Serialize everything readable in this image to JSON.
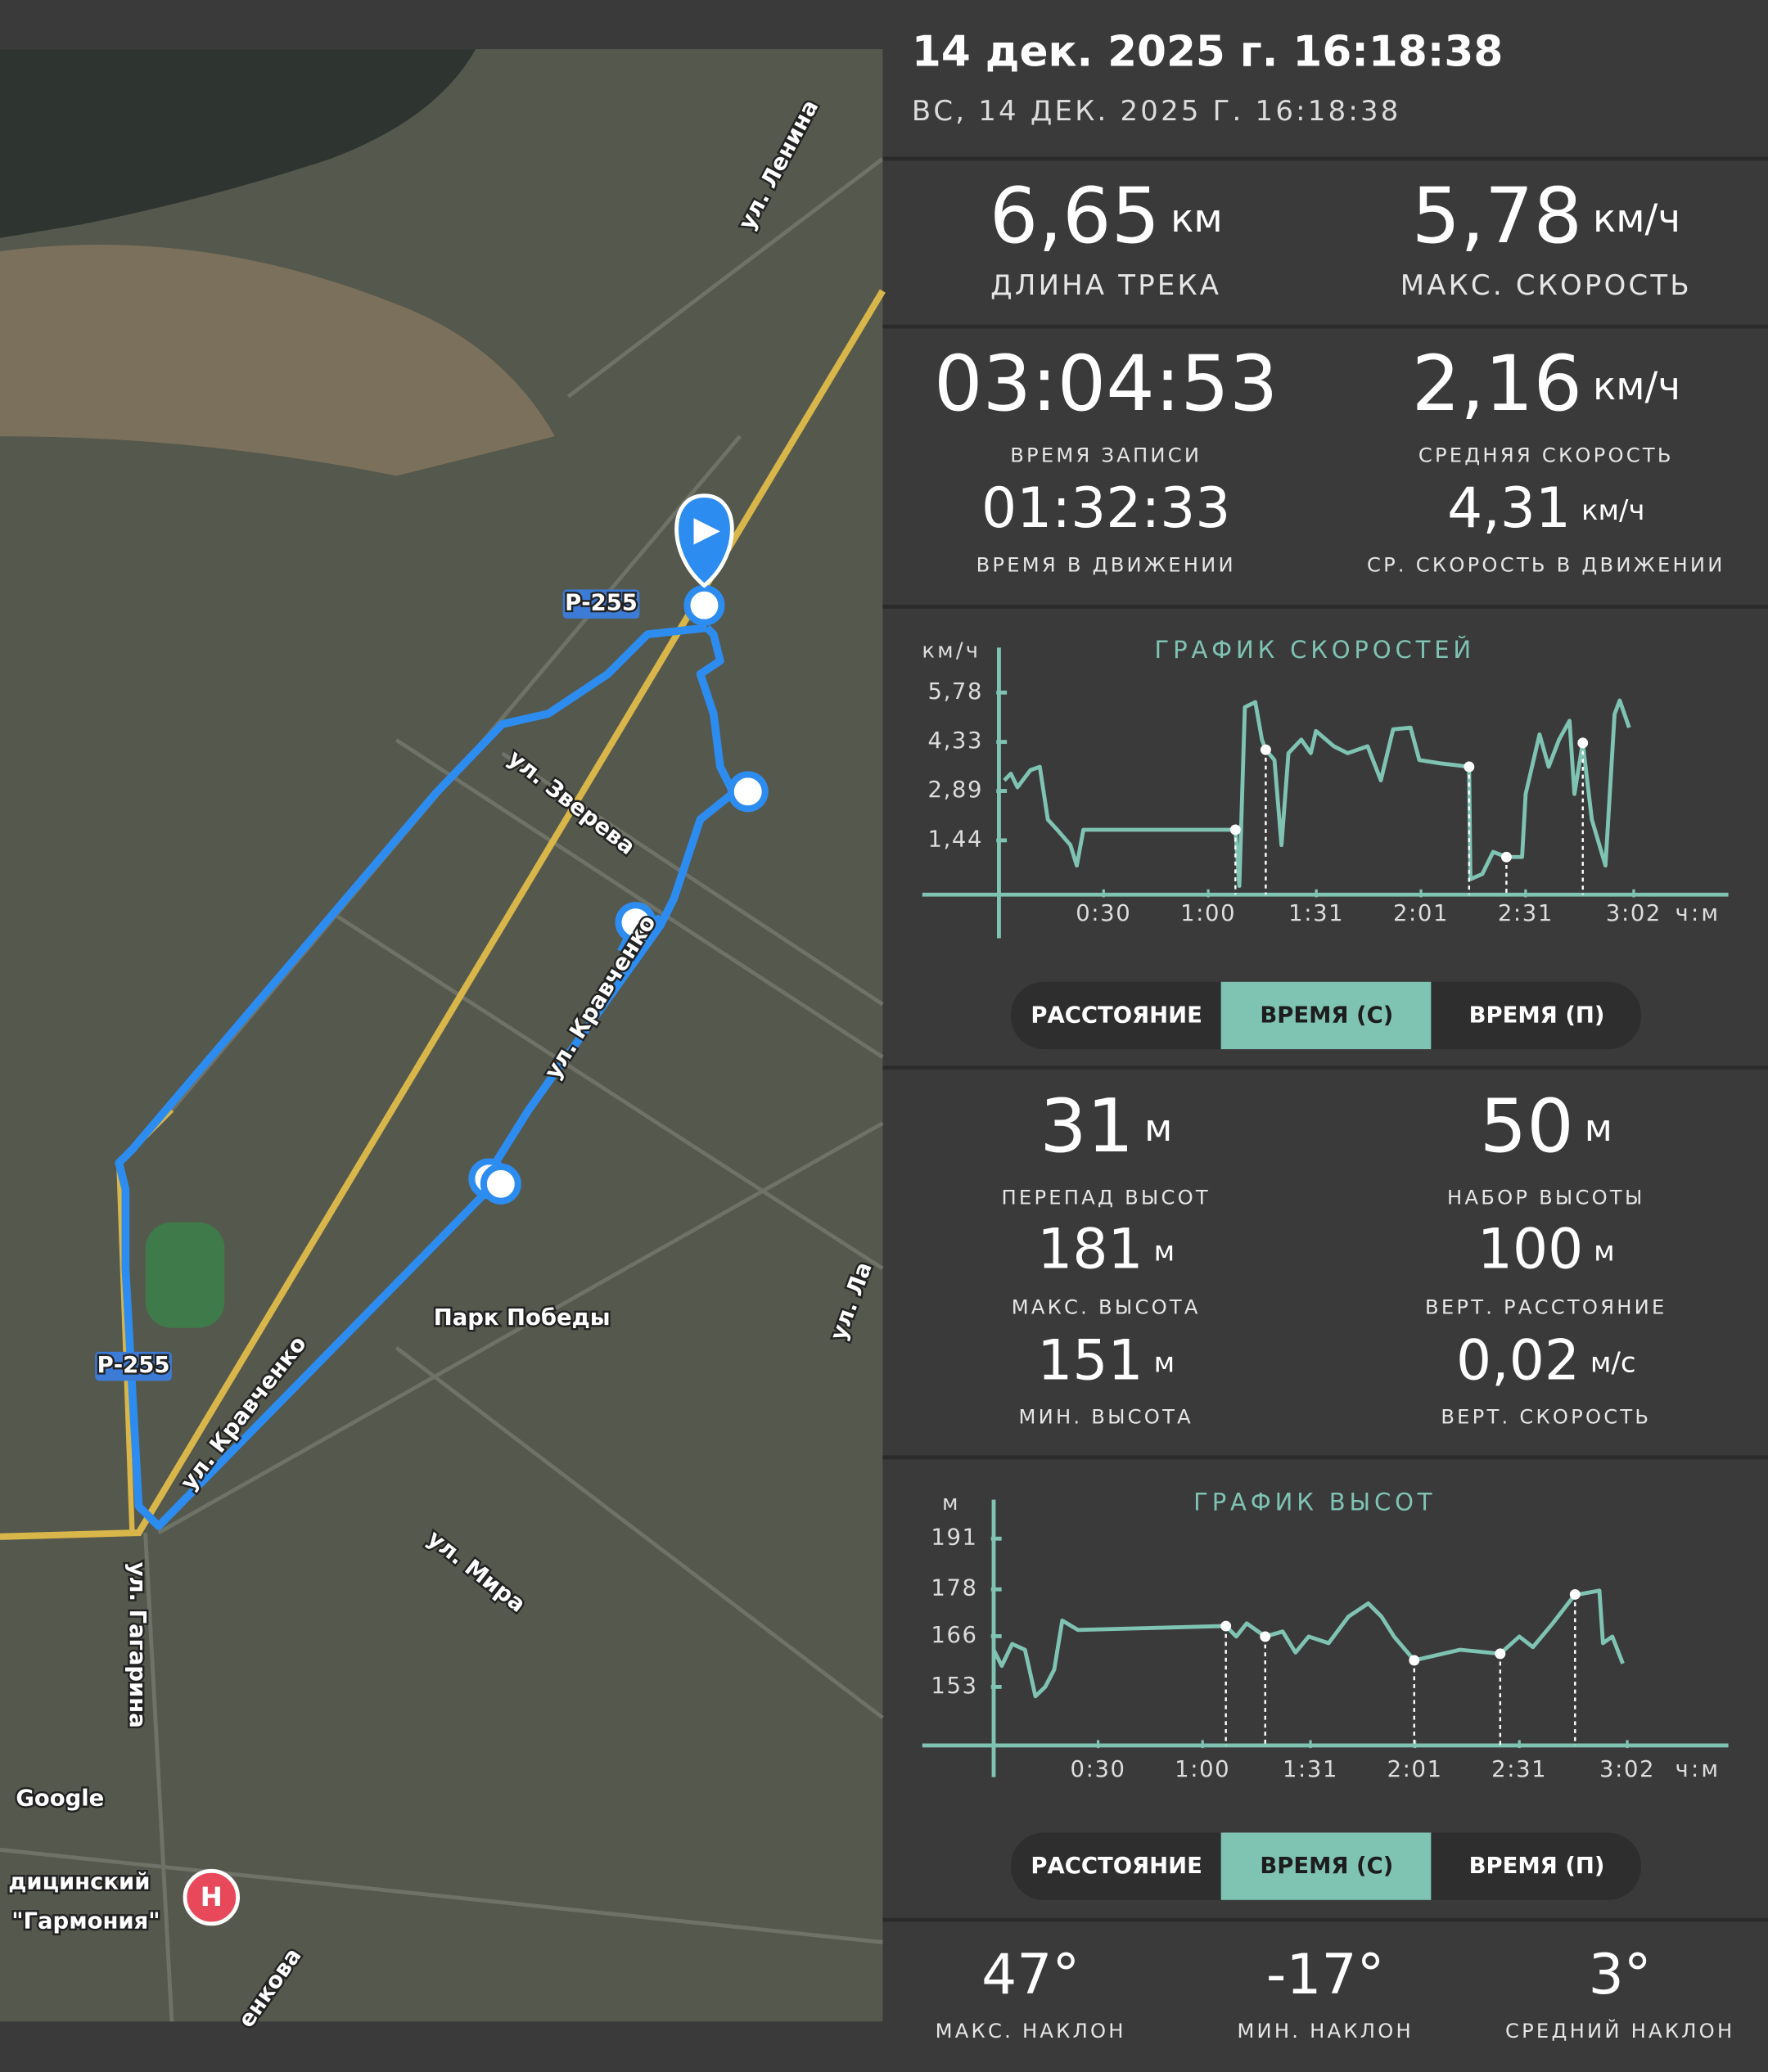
{
  "header": {
    "title": "14 дек. 2025 г. 16:18:38",
    "subtitle": "ВС, 14 ДЕК. 2025 Г. 16:18:38"
  },
  "map": {
    "labels": [
      "ул. Ленина",
      "Р-255",
      "ул. Зверева",
      "ул. Кравченко",
      "Р-255",
      "ул. Кравченко",
      "Парк Победы",
      "ул. Мира",
      "ул. Гагарина",
      "ул. Ла",
      "дицинский",
      "\"Гармония\"",
      "енкова"
    ],
    "attribution": "Google",
    "poi_icon": "H"
  },
  "track_stats": [
    {
      "value": "6,65",
      "unit": "км",
      "label": "ДЛИНА ТРЕКА"
    },
    {
      "value": "5,78",
      "unit": "км/ч",
      "label": "МАКС. СКОРОСТЬ"
    },
    {
      "value": "03:04:53",
      "label": "ВРЕМЯ ЗАПИСИ"
    },
    {
      "value": "2,16",
      "unit": "км/ч",
      "label": "СРЕДНЯЯ СКОРОСТЬ"
    },
    {
      "value": "01:32:33",
      "label": "ВРЕМЯ В ДВИЖЕНИИ"
    },
    {
      "value": "4,31",
      "unit": "км/ч",
      "label": "СР. СКОРОСТЬ В ДВИЖЕНИИ"
    }
  ],
  "speed_tabs": {
    "options": [
      "РАССТОЯНИЕ",
      "ВРЕМЯ (С)",
      "ВРЕМЯ (П)"
    ],
    "selected": 1
  },
  "elevation_stats": [
    {
      "value": "31",
      "unit": "м",
      "label": "ПЕРЕПАД ВЫСОТ"
    },
    {
      "value": "50",
      "unit": "м",
      "label": "НАБОР ВЫСОТЫ"
    },
    {
      "value": "181",
      "unit": "м",
      "label": "МАКС. ВЫСОТА"
    },
    {
      "value": "100",
      "unit": "м",
      "label": "ВЕРТ. РАССТОЯНИЕ"
    },
    {
      "value": "151",
      "unit": "м",
      "label": "МИН. ВЫСОТА"
    },
    {
      "value": "0,02",
      "unit": "м/с",
      "label": "ВЕРТ. СКОРОСТЬ"
    }
  ],
  "elevation_tabs": {
    "options": [
      "РАССТОЯНИЕ",
      "ВРЕМЯ (С)",
      "ВРЕМЯ (П)"
    ],
    "selected": 1
  },
  "slope_stats": [
    {
      "value": "47°",
      "label": "МАКС. НАКЛОН"
    },
    {
      "value": "-17°",
      "label": "МИН. НАКЛОН"
    },
    {
      "value": "3°",
      "label": "СРЕДНИЙ НАКЛОН"
    }
  ],
  "chart_data": [
    {
      "type": "line",
      "title": "ГРАФИК СКОРОСТЕЙ",
      "y_label": "км/ч",
      "x_label": "ч:м",
      "color": "#7fc3b3",
      "x": [
        1.5,
        3.4,
        5.3,
        9,
        11.7,
        14,
        16.7,
        20.5,
        22.3,
        24.2,
        67.8,
        68.9,
        70.5,
        73.5,
        75.4,
        76.5,
        79,
        81,
        83,
        86.7,
        89.4,
        90.9,
        96,
        100,
        105.7,
        109.5,
        113,
        118,
        120.5,
        126.5,
        134.8,
        135.2,
        138.6,
        141.7,
        145.5,
        150,
        151,
        155,
        157.6,
        160.6,
        163.6,
        165,
        167.4,
        170,
        173.9,
        176.5,
        178,
        180.7
      ],
      "values": [
        3.2,
        3.4,
        3.0,
        3.5,
        3.6,
        2.05,
        1.75,
        1.3,
        0.7,
        1.75,
        1.75,
        0.1,
        5.35,
        5.5,
        4.4,
        4.1,
        3.8,
        1.3,
        4.0,
        4.4,
        4.0,
        4.65,
        4.2,
        4.0,
        4.2,
        3.2,
        4.7,
        4.75,
        3.8,
        3.7,
        3.6,
        0.3,
        0.45,
        1.1,
        0.95,
        0.95,
        2.8,
        4.55,
        3.6,
        4.4,
        4.95,
        2.8,
        4.3,
        2.05,
        0.7,
        5.15,
        5.55,
        4.75
      ],
      "markers": {
        "x": [
          67.8,
          76.5,
          134.8,
          145.5,
          167.4
        ],
        "values": [
          1.75,
          4.1,
          3.6,
          0.95,
          4.3
        ]
      },
      "xlim": [
        0,
        208
      ],
      "ylim": [
        0,
        7.1
      ],
      "xticks": [
        {
          "value": 30,
          "label": "0:30"
        },
        {
          "value": 60,
          "label": "1:00"
        },
        {
          "value": 91,
          "label": "1:31"
        },
        {
          "value": 121,
          "label": "2:01"
        },
        {
          "value": 151,
          "label": "2:31"
        },
        {
          "value": 182,
          "label": "3:02"
        }
      ],
      "yticks": [
        {
          "value": 1.44,
          "label": "1,44"
        },
        {
          "value": 2.89,
          "label": "2,89"
        },
        {
          "value": 4.33,
          "label": "4,33"
        },
        {
          "value": 5.78,
          "label": "5,78"
        }
      ]
    },
    {
      "type": "line",
      "title": "ГРАФИК ВЫСОТ",
      "y_label": "м",
      "x_label": "ч:м",
      "color": "#7fc3b3",
      "x": [
        0,
        2.3,
        5.3,
        9,
        12,
        14.8,
        17.4,
        19.7,
        24.2,
        66.7,
        69.7,
        72.7,
        78,
        83,
        86.7,
        90.5,
        96.2,
        101.9,
        107.6,
        111.4,
        115,
        120.8,
        134,
        145.5,
        151,
        154.9,
        160.6,
        167,
        168,
        174,
        175,
        177.7,
        180.7
      ],
      "values": [
        162.5,
        158.4,
        164,
        162.5,
        150.6,
        153,
        157.4,
        170,
        167.6,
        168.6,
        165.9,
        169.3,
        165.9,
        167.2,
        161.8,
        165.9,
        164.2,
        171,
        174.4,
        171,
        165.9,
        159.8,
        162.5,
        161.5,
        165.9,
        163.2,
        169.3,
        176.7,
        176.7,
        177.7,
        164.2,
        165.9,
        159
      ],
      "markers": {
        "x": [
          66.7,
          78,
          120.8,
          145.5,
          167
        ],
        "values": [
          168.6,
          165.9,
          159.8,
          161.5,
          176.7
        ]
      },
      "xlim": [
        0,
        208
      ],
      "ylim": [
        138,
        202
      ],
      "xticks": [
        {
          "value": 30,
          "label": "0:30"
        },
        {
          "value": 60,
          "label": "1:00"
        },
        {
          "value": 91,
          "label": "1:31"
        },
        {
          "value": 121,
          "label": "2:01"
        },
        {
          "value": 151,
          "label": "2:31"
        },
        {
          "value": 182,
          "label": "3:02"
        }
      ],
      "yticks": [
        153,
        166,
        178,
        191
      ]
    }
  ]
}
